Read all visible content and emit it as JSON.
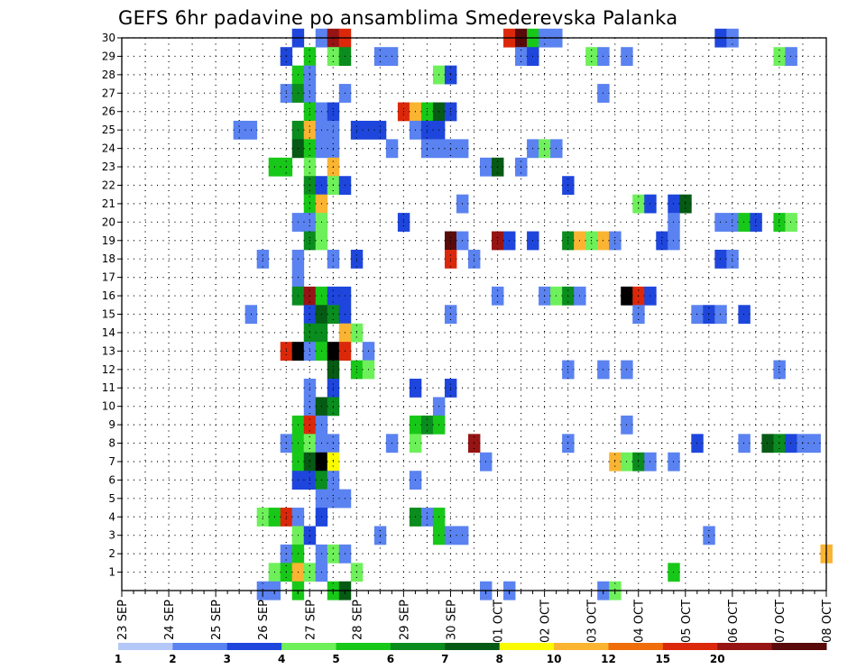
{
  "chart_data": {
    "type": "heatmap",
    "title": "GEFS 6hr padavine po ansamblima Smederevska Palanka",
    "xlabel": "",
    "ylabel": "",
    "x_ticks": [
      "23 SEP",
      "24 SEP",
      "25 SEP",
      "26 SEP",
      "27 SEP",
      "28 SEP",
      "29 SEP",
      "30 SEP",
      "01 OCT",
      "02 OCT",
      "03 OCT",
      "04 OCT",
      "05 OCT",
      "06 OCT",
      "07 OCT",
      "08 OCT"
    ],
    "y_ticks": [
      1,
      2,
      3,
      4,
      5,
      6,
      7,
      8,
      9,
      10,
      11,
      12,
      13,
      14,
      15,
      16,
      17,
      18,
      19,
      20,
      21,
      22,
      23,
      24,
      25,
      26,
      27,
      28,
      29,
      30
    ],
    "xlim_steps": [
      0,
      60
    ],
    "ylim": [
      0,
      30
    ],
    "step_hours": 6,
    "grid": true,
    "colorbar": {
      "labels": [
        "1",
        "2",
        "3",
        "4",
        "5",
        "6",
        "7",
        "8",
        "10",
        "12",
        "15",
        "20"
      ],
      "colors": [
        "#b4c8f8",
        "#5a82f0",
        "#1e46dc",
        "#6ef05a",
        "#18c818",
        "#0a8c1e",
        "#065a14",
        "#fafa00",
        "#fab432",
        "#f06e0a",
        "#dc280a",
        "#961414",
        "#5a0a0a"
      ]
    },
    "cells": [
      [
        30,
        15,
        2
      ],
      [
        30,
        17,
        1
      ],
      [
        30,
        18,
        11
      ],
      [
        30,
        19,
        10
      ],
      [
        30,
        33,
        10
      ],
      [
        30,
        34,
        12
      ],
      [
        30,
        35,
        4
      ],
      [
        30,
        36,
        1
      ],
      [
        30,
        37,
        1
      ],
      [
        30,
        51,
        2
      ],
      [
        30,
        52,
        1
      ],
      [
        29,
        14,
        2
      ],
      [
        29,
        16,
        4
      ],
      [
        29,
        18,
        3
      ],
      [
        29,
        19,
        5
      ],
      [
        29,
        22,
        1
      ],
      [
        29,
        23,
        1
      ],
      [
        29,
        34,
        1
      ],
      [
        29,
        35,
        2
      ],
      [
        29,
        40,
        3
      ],
      [
        29,
        41,
        1
      ],
      [
        29,
        43,
        1
      ],
      [
        29,
        56,
        3
      ],
      [
        29,
        57,
        1
      ],
      [
        28,
        15,
        4
      ],
      [
        28,
        16,
        1
      ],
      [
        28,
        27,
        3
      ],
      [
        28,
        28,
        2
      ],
      [
        27,
        14,
        1
      ],
      [
        27,
        15,
        5
      ],
      [
        27,
        16,
        1
      ],
      [
        27,
        19,
        1
      ],
      [
        27,
        41,
        1
      ],
      [
        26,
        16,
        4
      ],
      [
        26,
        17,
        1
      ],
      [
        26,
        18,
        2
      ],
      [
        26,
        24,
        10
      ],
      [
        26,
        25,
        8
      ],
      [
        26,
        26,
        4
      ],
      [
        26,
        27,
        6
      ],
      [
        26,
        28,
        2
      ],
      [
        25,
        10,
        1
      ],
      [
        25,
        11,
        1
      ],
      [
        25,
        15,
        5
      ],
      [
        25,
        16,
        8
      ],
      [
        25,
        17,
        1
      ],
      [
        25,
        18,
        1
      ],
      [
        25,
        20,
        2
      ],
      [
        25,
        21,
        2
      ],
      [
        25,
        22,
        2
      ],
      [
        25,
        25,
        1
      ],
      [
        25,
        26,
        2
      ],
      [
        25,
        27,
        2
      ],
      [
        24,
        15,
        6
      ],
      [
        24,
        16,
        4
      ],
      [
        24,
        17,
        1
      ],
      [
        24,
        18,
        1
      ],
      [
        24,
        23,
        1
      ],
      [
        24,
        26,
        1
      ],
      [
        24,
        27,
        1
      ],
      [
        24,
        28,
        1
      ],
      [
        24,
        29,
        1
      ],
      [
        24,
        35,
        1
      ],
      [
        24,
        36,
        3
      ],
      [
        24,
        37,
        1
      ],
      [
        23,
        13,
        4
      ],
      [
        23,
        14,
        4
      ],
      [
        23,
        16,
        3
      ],
      [
        23,
        18,
        8
      ],
      [
        23,
        31,
        1
      ],
      [
        23,
        32,
        6
      ],
      [
        23,
        34,
        1
      ],
      [
        22,
        16,
        5
      ],
      [
        22,
        17,
        2
      ],
      [
        22,
        18,
        3
      ],
      [
        22,
        19,
        2
      ],
      [
        22,
        38,
        2
      ],
      [
        21,
        16,
        4
      ],
      [
        21,
        17,
        8
      ],
      [
        21,
        29,
        1
      ],
      [
        21,
        44,
        3
      ],
      [
        21,
        45,
        2
      ],
      [
        21,
        47,
        2
      ],
      [
        21,
        48,
        6
      ],
      [
        20,
        15,
        1
      ],
      [
        20,
        16,
        1
      ],
      [
        20,
        17,
        3
      ],
      [
        20,
        24,
        2
      ],
      [
        20,
        47,
        1
      ],
      [
        20,
        51,
        1
      ],
      [
        20,
        52,
        1
      ],
      [
        20,
        53,
        4
      ],
      [
        20,
        54,
        2
      ],
      [
        20,
        56,
        4
      ],
      [
        20,
        57,
        3
      ],
      [
        19,
        16,
        5
      ],
      [
        19,
        17,
        3
      ],
      [
        19,
        28,
        12
      ],
      [
        19,
        29,
        1
      ],
      [
        19,
        32,
        11
      ],
      [
        19,
        33,
        2
      ],
      [
        19,
        35,
        2
      ],
      [
        19,
        38,
        5
      ],
      [
        19,
        39,
        8
      ],
      [
        19,
        40,
        3
      ],
      [
        19,
        41,
        8
      ],
      [
        19,
        42,
        1
      ],
      [
        19,
        46,
        2
      ],
      [
        19,
        47,
        1
      ],
      [
        18,
        12,
        1
      ],
      [
        18,
        15,
        1
      ],
      [
        18,
        18,
        1
      ],
      [
        18,
        20,
        2
      ],
      [
        18,
        28,
        10
      ],
      [
        18,
        30,
        1
      ],
      [
        18,
        51,
        2
      ],
      [
        18,
        52,
        1
      ],
      [
        17,
        15,
        1
      ],
      [
        16,
        15,
        5
      ],
      [
        16,
        16,
        11
      ],
      [
        16,
        17,
        4
      ],
      [
        16,
        18,
        2
      ],
      [
        16,
        19,
        2
      ],
      [
        16,
        32,
        1
      ],
      [
        16,
        36,
        1
      ],
      [
        16,
        37,
        3
      ],
      [
        16,
        38,
        5
      ],
      [
        16,
        39,
        1
      ],
      [
        16,
        43,
        13
      ],
      [
        16,
        44,
        10
      ],
      [
        16,
        45,
        2
      ],
      [
        15,
        11,
        1
      ],
      [
        15,
        16,
        2
      ],
      [
        15,
        17,
        6
      ],
      [
        15,
        18,
        5
      ],
      [
        15,
        19,
        2
      ],
      [
        15,
        28,
        1
      ],
      [
        15,
        44,
        1
      ],
      [
        15,
        49,
        1
      ],
      [
        15,
        50,
        2
      ],
      [
        15,
        51,
        1
      ],
      [
        15,
        53,
        2
      ],
      [
        14,
        16,
        5
      ],
      [
        14,
        17,
        5
      ],
      [
        14,
        19,
        8
      ],
      [
        14,
        20,
        3
      ],
      [
        13,
        14,
        10
      ],
      [
        13,
        15,
        13
      ],
      [
        13,
        16,
        1
      ],
      [
        13,
        17,
        4
      ],
      [
        13,
        18,
        13
      ],
      [
        13,
        19,
        10
      ],
      [
        13,
        21,
        1
      ],
      [
        12,
        18,
        6
      ],
      [
        12,
        20,
        4
      ],
      [
        12,
        21,
        3
      ],
      [
        12,
        38,
        1
      ],
      [
        12,
        41,
        1
      ],
      [
        12,
        43,
        1
      ],
      [
        12,
        56,
        1
      ],
      [
        11,
        16,
        1
      ],
      [
        11,
        18,
        2
      ],
      [
        11,
        25,
        2
      ],
      [
        11,
        28,
        2
      ],
      [
        10,
        16,
        1
      ],
      [
        10,
        17,
        6
      ],
      [
        10,
        18,
        5
      ],
      [
        10,
        27,
        1
      ],
      [
        9,
        15,
        4
      ],
      [
        9,
        16,
        10
      ],
      [
        9,
        17,
        1
      ],
      [
        9,
        25,
        4
      ],
      [
        9,
        26,
        5
      ],
      [
        9,
        27,
        4
      ],
      [
        9,
        43,
        1
      ],
      [
        8,
        14,
        1
      ],
      [
        8,
        15,
        4
      ],
      [
        8,
        16,
        3
      ],
      [
        8,
        17,
        1
      ],
      [
        8,
        18,
        1
      ],
      [
        8,
        23,
        1
      ],
      [
        8,
        25,
        3
      ],
      [
        8,
        30,
        11
      ],
      [
        8,
        38,
        1
      ],
      [
        8,
        49,
        2
      ],
      [
        8,
        53,
        1
      ],
      [
        8,
        55,
        6
      ],
      [
        8,
        56,
        5
      ],
      [
        8,
        57,
        2
      ],
      [
        8,
        58,
        1
      ],
      [
        8,
        59,
        1
      ],
      [
        7,
        15,
        4
      ],
      [
        7,
        16,
        6
      ],
      [
        7,
        17,
        13
      ],
      [
        7,
        18,
        7
      ],
      [
        7,
        31,
        1
      ],
      [
        7,
        42,
        8
      ],
      [
        7,
        43,
        3
      ],
      [
        7,
        44,
        5
      ],
      [
        7,
        45,
        1
      ],
      [
        7,
        47,
        1
      ],
      [
        6,
        15,
        2
      ],
      [
        6,
        16,
        2
      ],
      [
        6,
        17,
        5
      ],
      [
        6,
        18,
        1
      ],
      [
        6,
        25,
        1
      ],
      [
        5,
        17,
        1
      ],
      [
        5,
        18,
        1
      ],
      [
        5,
        19,
        1
      ],
      [
        4,
        12,
        3
      ],
      [
        4,
        13,
        4
      ],
      [
        4,
        14,
        10
      ],
      [
        4,
        15,
        1
      ],
      [
        4,
        17,
        2
      ],
      [
        4,
        25,
        5
      ],
      [
        4,
        26,
        1
      ],
      [
        4,
        27,
        4
      ],
      [
        3,
        15,
        3
      ],
      [
        3,
        16,
        2
      ],
      [
        3,
        22,
        1
      ],
      [
        3,
        27,
        4
      ],
      [
        3,
        28,
        1
      ],
      [
        3,
        29,
        1
      ],
      [
        3,
        50,
        1
      ],
      [
        2,
        14,
        1
      ],
      [
        2,
        15,
        4
      ],
      [
        2,
        17,
        1
      ],
      [
        2,
        18,
        3
      ],
      [
        2,
        19,
        1
      ],
      [
        2,
        60,
        8
      ],
      [
        1,
        13,
        3
      ],
      [
        1,
        14,
        4
      ],
      [
        1,
        15,
        8
      ],
      [
        1,
        16,
        3
      ],
      [
        1,
        17,
        1
      ],
      [
        1,
        20,
        3
      ],
      [
        1,
        47,
        4
      ],
      [
        0,
        12,
        1
      ],
      [
        0,
        13,
        1
      ],
      [
        0,
        15,
        4
      ],
      [
        0,
        18,
        4
      ],
      [
        0,
        19,
        6
      ],
      [
        0,
        31,
        1
      ],
      [
        0,
        33,
        1
      ],
      [
        0,
        41,
        1
      ],
      [
        0,
        42,
        3
      ]
    ]
  }
}
